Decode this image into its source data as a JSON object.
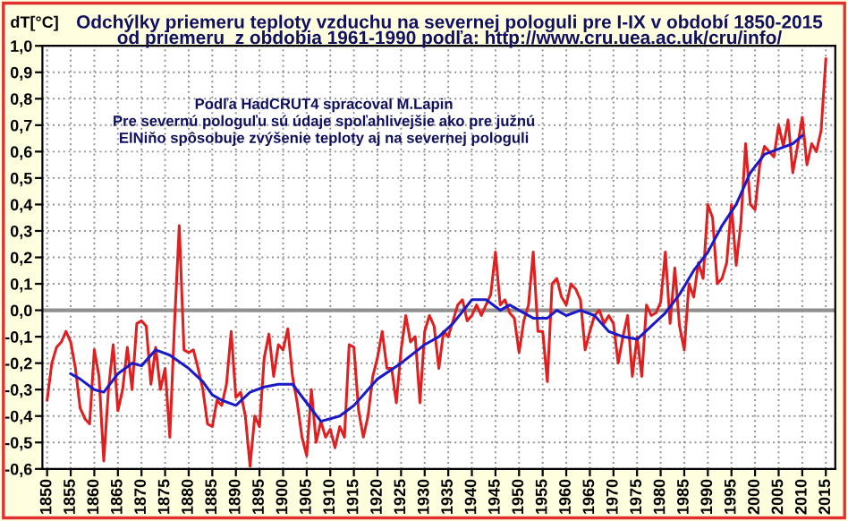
{
  "chart_data": {
    "type": "line",
    "title": "Odchýlky priemeru teploty vzduchu na severnej pologuli pre I-IX v období 1850-2015",
    "subtitle": "od priemeru  z obdobia 1961-1990 podľa: http://www.cru.uea.ac.uk/cru/info/",
    "ylabel": "dT[°C]",
    "annotations": [
      "Podľa HadCRUT4 spracoval M.Lapin",
      "Pre severnú pologuľu sú údaje spoľahlivejšie ako pre južnú",
      "ElNiňo spôsobuje zvýšenie teploty aj na severnej pologuli"
    ],
    "series": [
      {
        "color": "#e02020",
        "x": [
          1850,
          1851,
          1852,
          1853,
          1854,
          1855,
          1856,
          1857,
          1858,
          1859,
          1860,
          1861,
          1862,
          1863,
          1864,
          1865,
          1866,
          1867,
          1868,
          1869,
          1870,
          1871,
          1872,
          1873,
          1874,
          1875,
          1876,
          1877,
          1878,
          1879,
          1880,
          1881,
          1882,
          1883,
          1884,
          1885,
          1886,
          1887,
          1888,
          1889,
          1890,
          1891,
          1892,
          1893,
          1894,
          1895,
          1896,
          1897,
          1898,
          1899,
          1900,
          1901,
          1902,
          1903,
          1904,
          1905,
          1906,
          1907,
          1908,
          1909,
          1910,
          1911,
          1912,
          1913,
          1914,
          1915,
          1916,
          1917,
          1918,
          1919,
          1920,
          1921,
          1922,
          1923,
          1924,
          1925,
          1926,
          1927,
          1928,
          1929,
          1930,
          1931,
          1932,
          1933,
          1934,
          1935,
          1936,
          1937,
          1938,
          1939,
          1940,
          1941,
          1942,
          1943,
          1944,
          1945,
          1946,
          1947,
          1948,
          1949,
          1950,
          1951,
          1952,
          1953,
          1954,
          1955,
          1956,
          1957,
          1958,
          1959,
          1960,
          1961,
          1962,
          1963,
          1964,
          1965,
          1966,
          1967,
          1968,
          1969,
          1970,
          1971,
          1972,
          1973,
          1974,
          1975,
          1976,
          1977,
          1978,
          1979,
          1980,
          1981,
          1982,
          1983,
          1984,
          1985,
          1986,
          1987,
          1988,
          1989,
          1990,
          1991,
          1992,
          1993,
          1994,
          1995,
          1996,
          1997,
          1998,
          1999,
          2000,
          2001,
          2002,
          2003,
          2004,
          2005,
          2006,
          2007,
          2008,
          2009,
          2010,
          2011,
          2012,
          2013,
          2014,
          2015
        ],
        "values": [
          -0.34,
          -0.2,
          -0.14,
          -0.12,
          -0.08,
          -0.12,
          -0.22,
          -0.37,
          -0.41,
          -0.43,
          -0.15,
          -0.25,
          -0.57,
          -0.3,
          -0.13,
          -0.38,
          -0.3,
          -0.14,
          -0.3,
          -0.05,
          -0.04,
          -0.06,
          -0.28,
          -0.14,
          -0.3,
          -0.22,
          -0.48,
          -0.05,
          0.32,
          -0.15,
          -0.16,
          -0.15,
          -0.22,
          -0.3,
          -0.43,
          -0.44,
          -0.34,
          -0.36,
          -0.28,
          -0.08,
          -0.33,
          -0.31,
          -0.4,
          -0.59,
          -0.4,
          -0.44,
          -0.18,
          -0.09,
          -0.25,
          -0.13,
          -0.15,
          -0.07,
          -0.25,
          -0.35,
          -0.48,
          -0.55,
          -0.3,
          -0.5,
          -0.42,
          -0.48,
          -0.45,
          -0.52,
          -0.44,
          -0.48,
          -0.13,
          -0.14,
          -0.38,
          -0.48,
          -0.4,
          -0.25,
          -0.18,
          -0.08,
          -0.22,
          -0.22,
          -0.35,
          -0.15,
          -0.02,
          -0.12,
          -0.1,
          -0.35,
          -0.08,
          -0.02,
          -0.06,
          -0.22,
          -0.08,
          -0.1,
          -0.04,
          0.02,
          0.04,
          -0.04,
          -0.02,
          0.02,
          -0.02,
          0.02,
          0.06,
          0.22,
          0.02,
          0.04,
          -0.01,
          -0.03,
          -0.16,
          -0.04,
          0.02,
          0.22,
          -0.08,
          -0.08,
          -0.27,
          0.1,
          0.12,
          0.05,
          0.02,
          0.1,
          0.08,
          0.04,
          -0.15,
          -0.08,
          -0.02,
          0.0,
          -0.05,
          -0.02,
          -0.05,
          -0.2,
          -0.1,
          -0.02,
          -0.25,
          -0.1,
          -0.25,
          0.02,
          -0.02,
          -0.01,
          0.03,
          0.22,
          -0.05,
          0.16,
          -0.06,
          -0.15,
          0.1,
          0.05,
          0.18,
          0.12,
          0.4,
          0.35,
          0.1,
          0.12,
          0.18,
          0.4,
          0.17,
          0.33,
          0.63,
          0.4,
          0.38,
          0.55,
          0.62,
          0.6,
          0.58,
          0.7,
          0.62,
          0.72,
          0.52,
          0.62,
          0.73,
          0.55,
          0.63,
          0.6,
          0.68,
          0.95
        ]
      },
      {
        "color": "#1a1ac8",
        "x": [
          1855,
          1857,
          1860,
          1862,
          1865,
          1868,
          1870,
          1873,
          1876,
          1880,
          1883,
          1885,
          1887,
          1890,
          1893,
          1896,
          1899,
          1902,
          1905,
          1908,
          1910,
          1912,
          1915,
          1918,
          1920,
          1925,
          1930,
          1933,
          1936,
          1940,
          1943,
          1946,
          1948,
          1950,
          1953,
          1956,
          1958,
          1960,
          1963,
          1966,
          1969,
          1972,
          1975,
          1978,
          1981,
          1984,
          1987,
          1990,
          1993,
          1996,
          1999,
          2002,
          2005,
          2008,
          2010
        ],
        "values": [
          -0.24,
          -0.26,
          -0.3,
          -0.31,
          -0.24,
          -0.2,
          -0.21,
          -0.15,
          -0.17,
          -0.22,
          -0.27,
          -0.32,
          -0.34,
          -0.36,
          -0.31,
          -0.29,
          -0.28,
          -0.28,
          -0.35,
          -0.42,
          -0.41,
          -0.4,
          -0.36,
          -0.3,
          -0.26,
          -0.2,
          -0.13,
          -0.1,
          -0.05,
          0.04,
          0.04,
          0.0,
          0.02,
          0.0,
          -0.03,
          -0.03,
          0.0,
          -0.02,
          0.0,
          -0.02,
          -0.08,
          -0.1,
          -0.11,
          -0.06,
          -0.01,
          0.06,
          0.15,
          0.22,
          0.32,
          0.4,
          0.52,
          0.59,
          0.61,
          0.63,
          0.66
        ]
      }
    ],
    "xlim": [
      1849,
      2017
    ],
    "xticks": [
      1850,
      1855,
      1860,
      1865,
      1870,
      1875,
      1880,
      1885,
      1890,
      1895,
      1900,
      1905,
      1910,
      1915,
      1920,
      1925,
      1930,
      1935,
      1940,
      1945,
      1950,
      1955,
      1960,
      1965,
      1970,
      1975,
      1980,
      1985,
      1990,
      1995,
      2000,
      2005,
      2010,
      2015
    ],
    "ylim": [
      -0.6,
      1.0
    ],
    "yticks": [
      {
        "value": -0.6,
        "label": "-0,6"
      },
      {
        "value": -0.5,
        "label": "-0,5"
      },
      {
        "value": -0.4,
        "label": "-0,4"
      },
      {
        "value": -0.3,
        "label": "-0,3"
      },
      {
        "value": -0.2,
        "label": "-0,2"
      },
      {
        "value": -0.1,
        "label": "-0,1"
      },
      {
        "value": 0.0,
        "label": "0,0"
      },
      {
        "value": 0.1,
        "label": "0,1"
      },
      {
        "value": 0.2,
        "label": "0,2"
      },
      {
        "value": 0.3,
        "label": "0,3"
      },
      {
        "value": 0.4,
        "label": "0,4"
      },
      {
        "value": 0.5,
        "label": "0,5"
      },
      {
        "value": 0.6,
        "label": "0,6"
      },
      {
        "value": 0.7,
        "label": "0,7"
      },
      {
        "value": 0.8,
        "label": "0,8"
      },
      {
        "value": 0.9,
        "label": "0,9"
      },
      {
        "value": 1.0,
        "label": "1,0"
      }
    ],
    "ref_lines": [
      {
        "axis": "y",
        "value": 0.0,
        "label": null,
        "color": "#909090"
      }
    ],
    "grid": true,
    "legend": false,
    "marker": "none",
    "line_style": "solid"
  }
}
